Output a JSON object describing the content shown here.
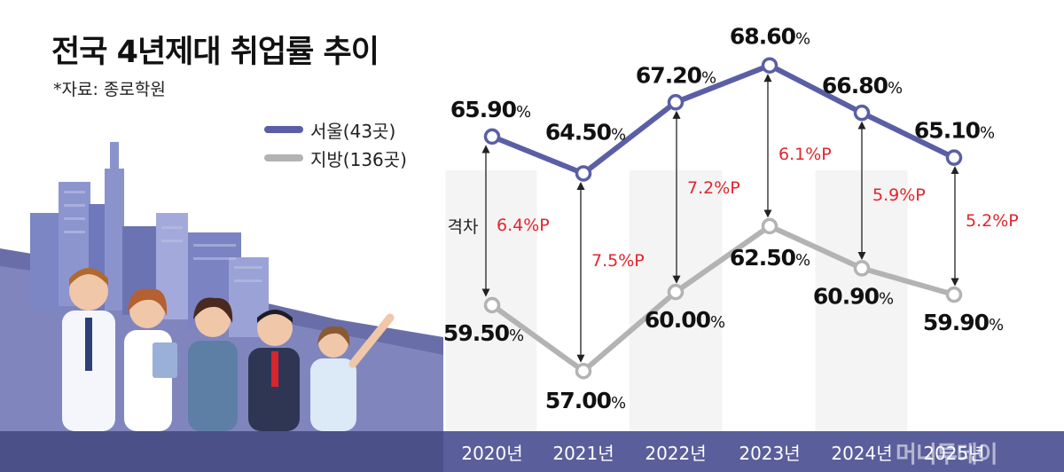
{
  "title": "전국 4년제대 취업률 추이",
  "source": "*자료: 종로학원",
  "watermark": "머니투데이",
  "gap_label": "격차",
  "colors": {
    "seoul": "#5a5fa5",
    "region": "#b3b3b3",
    "gap_text": "#e0262d",
    "footer": "#5a5e9a",
    "column_band": "#f3f3f3"
  },
  "legend": [
    {
      "label": "서울(43곳)",
      "color": "#5a5fa5"
    },
    {
      "label": "지방(136곳)",
      "color": "#b3b3b3"
    }
  ],
  "chart_data": {
    "type": "line",
    "title": "전국 4년제대 취업률 추이",
    "categories": [
      "2020년",
      "2021년",
      "2022년",
      "2023년",
      "2024년",
      "2025년"
    ],
    "series": [
      {
        "name": "서울(43곳)",
        "values": [
          65.9,
          64.5,
          67.2,
          68.6,
          66.8,
          65.1
        ],
        "labels": [
          "65.90%",
          "64.50%",
          "67.20%",
          "68.60%",
          "66.80%",
          "65.10%"
        ]
      },
      {
        "name": "지방(136곳)",
        "values": [
          59.5,
          57.0,
          60.0,
          62.5,
          60.9,
          59.9
        ],
        "labels": [
          "59.50%",
          "57.00%",
          "60.00%",
          "62.50%",
          "60.90%",
          "59.90%"
        ]
      }
    ],
    "gaps": [
      "6.4%P",
      "7.5%P",
      "7.2%P",
      "6.1%P",
      "5.9%P",
      "5.2%P"
    ],
    "ylim": [
      56.2,
      69.6
    ],
    "grid": false,
    "legend_position": "top-left"
  }
}
